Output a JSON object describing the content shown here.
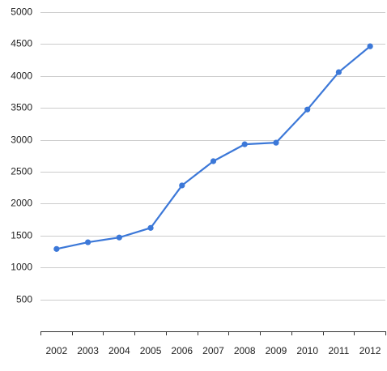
{
  "chart_data": {
    "type": "line",
    "x": [
      "2002",
      "2003",
      "2004",
      "2005",
      "2006",
      "2007",
      "2008",
      "2009",
      "2010",
      "2011",
      "2012"
    ],
    "series": [
      {
        "values": [
          1290,
          1395,
          1470,
          1620,
          2285,
          2665,
          2930,
          2955,
          3475,
          4060,
          4465
        ]
      }
    ],
    "y_ticks": [
      "500",
      "1000",
      "1500",
      "2000",
      "2500",
      "3000",
      "3500",
      "4000",
      "4500",
      "5000"
    ],
    "ylim": [
      0,
      5000
    ],
    "grid": true,
    "legend": "none",
    "line_color": "#3c78d8"
  }
}
